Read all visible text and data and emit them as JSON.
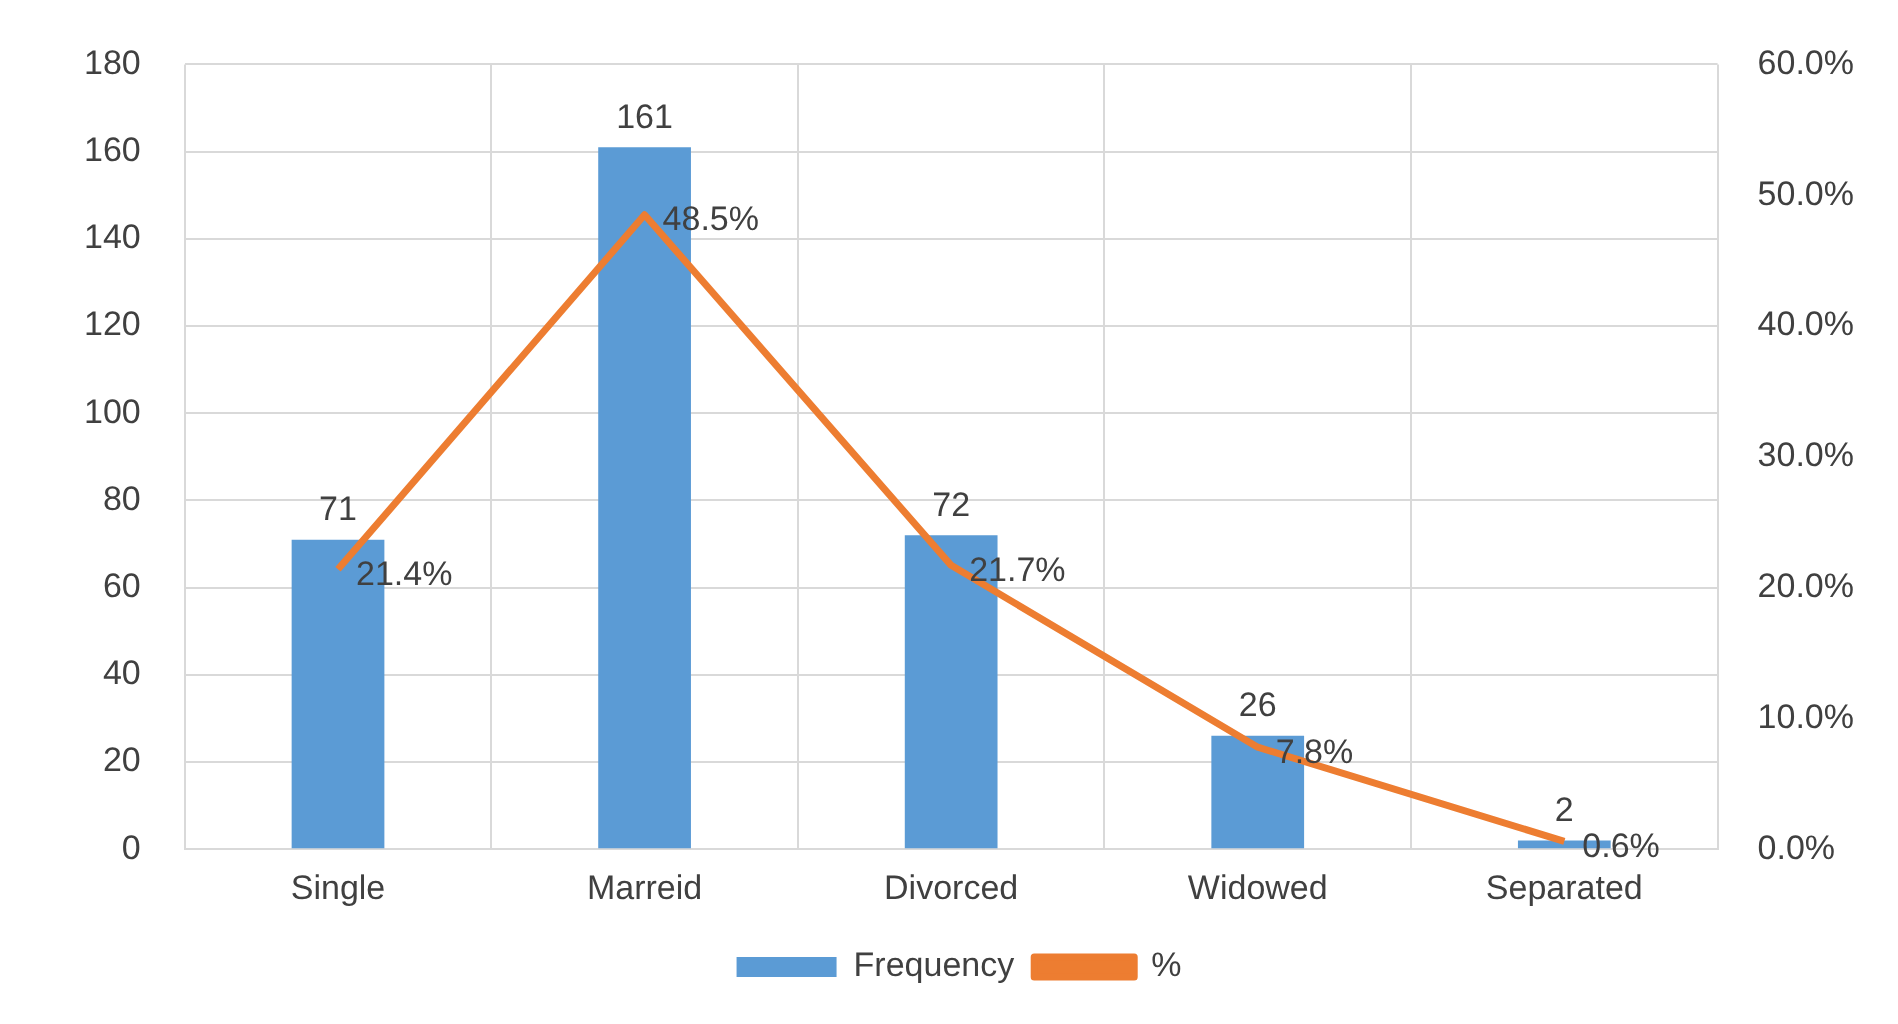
{
  "chart_data": {
    "type": "bar",
    "categories": [
      "Single",
      "Marreid",
      "Divorced",
      "Widowed",
      "Separated"
    ],
    "series": [
      {
        "name": "Frequency",
        "color": "#5b9bd5",
        "values": [
          71,
          161,
          72,
          26,
          2
        ],
        "value_labels": [
          "71",
          "161",
          "72",
          "26",
          "2"
        ]
      },
      {
        "name": "%",
        "type": "line",
        "axis": "y2",
        "color": "#ed7d31",
        "values": [
          21.4,
          48.5,
          21.7,
          7.8,
          0.6
        ],
        "value_labels": [
          "21.4%",
          "48.5%",
          "21.7%",
          "7.8%",
          "0.6%"
        ]
      }
    ],
    "ylim": [
      0,
      180
    ],
    "yticks": [
      0,
      20,
      40,
      60,
      80,
      100,
      120,
      140,
      160,
      180
    ],
    "y2lim": [
      0,
      60
    ],
    "y2ticks": [
      {
        "value": 0,
        "label": "0.0%"
      },
      {
        "value": 10,
        "label": "10.0%"
      },
      {
        "value": 20,
        "label": "20.0%"
      },
      {
        "value": 30,
        "label": "30.0%"
      },
      {
        "value": 40,
        "label": "40.0%"
      },
      {
        "value": 50,
        "label": "50.0%"
      },
      {
        "value": 60,
        "label": "60.0%"
      }
    ],
    "grid": true,
    "legend": "bottom",
    "marker": "none",
    "line_style": "solid"
  }
}
